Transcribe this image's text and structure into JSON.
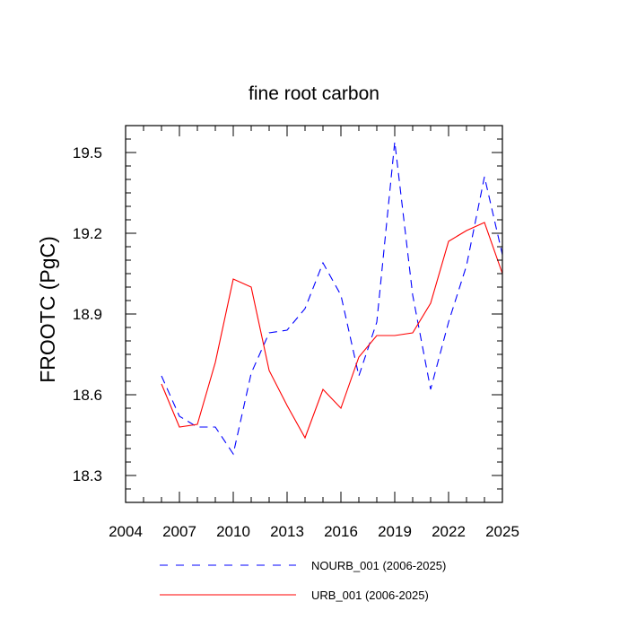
{
  "chart_data": {
    "type": "line",
    "title": "fine root carbon",
    "ylabel": "FROOTC  (PgC)",
    "xlabel": "",
    "xlim": [
      2004,
      2025
    ],
    "ylim": [
      18.2,
      19.6
    ],
    "xticks": [
      2004,
      2007,
      2010,
      2013,
      2016,
      2019,
      2022,
      2025
    ],
    "yticks": [
      18.3,
      18.6,
      18.9,
      19.2,
      19.5
    ],
    "ytick_labels": [
      "18.3",
      "18.6",
      "18.9",
      "19.2",
      "19.5"
    ],
    "x": [
      2006,
      2007,
      2008,
      2009,
      2010,
      2011,
      2012,
      2013,
      2014,
      2015,
      2016,
      2017,
      2018,
      2019,
      2020,
      2021,
      2022,
      2023,
      2024,
      2025
    ],
    "series": [
      {
        "name": "NOURB_001 (2006-2025)",
        "color": "#0000ff",
        "dash": "dashed",
        "values": [
          18.67,
          18.52,
          18.48,
          18.48,
          18.38,
          18.68,
          18.83,
          18.84,
          18.92,
          19.09,
          18.97,
          18.67,
          18.87,
          19.54,
          18.97,
          18.62,
          18.87,
          19.08,
          19.41,
          19.12
        ]
      },
      {
        "name": "URB_001 (2006-2025)",
        "color": "#ff0000",
        "dash": "solid",
        "values": [
          18.64,
          18.48,
          18.49,
          18.72,
          19.03,
          19.0,
          18.69,
          18.56,
          18.44,
          18.62,
          18.55,
          18.74,
          18.82,
          18.82,
          18.83,
          18.94,
          19.17,
          19.21,
          19.24,
          19.05
        ]
      }
    ],
    "legend_position": "bottom"
  }
}
